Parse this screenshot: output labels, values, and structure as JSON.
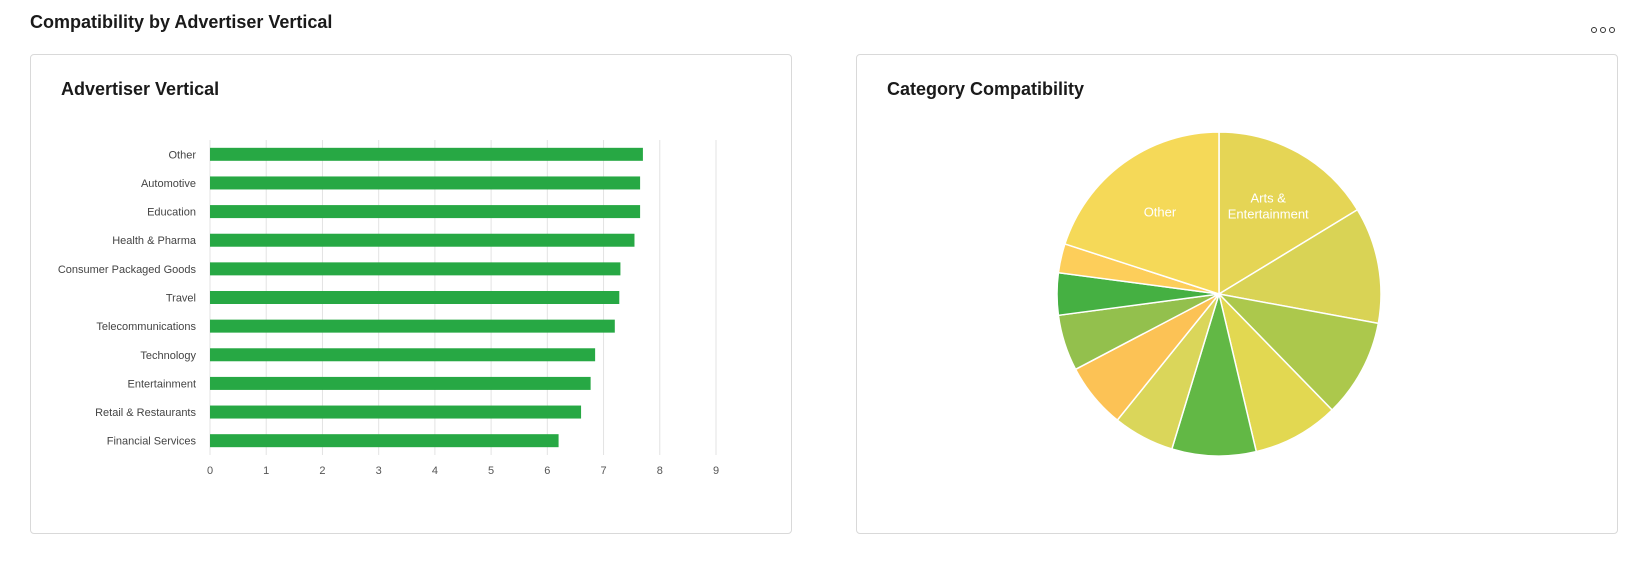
{
  "page": {
    "title": "Compatibility by Advertiser Vertical",
    "more_icon": "more-horizontal-icon"
  },
  "colors": {
    "bar": "#27a844",
    "grid": "#e3e3e3",
    "axis_text": "#555555",
    "slice_border": "#ffffff"
  },
  "chart_data": [
    {
      "type": "bar",
      "orientation": "horizontal",
      "title": "Advertiser Vertical",
      "categories": [
        "Other",
        "Automotive",
        "Education",
        "Health & Pharma",
        "Consumer Packaged Goods",
        "Travel",
        "Telecommunications",
        "Technology",
        "Entertainment",
        "Retail & Restaurants",
        "Financial Services"
      ],
      "values": [
        7.7,
        7.65,
        7.65,
        7.55,
        7.3,
        7.28,
        7.2,
        6.85,
        6.77,
        6.6,
        6.2
      ],
      "xlim": [
        0,
        9
      ],
      "xticks": [
        0,
        1,
        2,
        3,
        4,
        5,
        6,
        7,
        8,
        9
      ],
      "xlabel": "",
      "ylabel": "",
      "grid": true,
      "legend": "none",
      "color": "#27a844"
    },
    {
      "type": "pie",
      "title": "Category Compatibility",
      "start_angle_deg": 0,
      "direction": "clockwise",
      "slices": [
        {
          "label": "Arts & Entertainment",
          "value": 16.3,
          "color": "#e5d555",
          "show_label": true
        },
        {
          "label": "",
          "value": 11.6,
          "color": "#d9d355",
          "show_label": false
        },
        {
          "label": "",
          "value": 9.8,
          "color": "#acc84c",
          "show_label": false
        },
        {
          "label": "",
          "value": 8.6,
          "color": "#e2d851",
          "show_label": false
        },
        {
          "label": "",
          "value": 8.4,
          "color": "#62b845",
          "show_label": false
        },
        {
          "label": "",
          "value": 6.1,
          "color": "#dad65a",
          "show_label": false
        },
        {
          "label": "",
          "value": 6.5,
          "color": "#fcc255",
          "show_label": false
        },
        {
          "label": "",
          "value": 5.6,
          "color": "#93c04d",
          "show_label": false
        },
        {
          "label": "",
          "value": 4.2,
          "color": "#45b042",
          "show_label": false
        },
        {
          "label": "",
          "value": 2.9,
          "color": "#fdce5a",
          "show_label": false
        },
        {
          "label": "Other",
          "value": 20.0,
          "color": "#f5d958",
          "show_label": true
        }
      ]
    }
  ]
}
